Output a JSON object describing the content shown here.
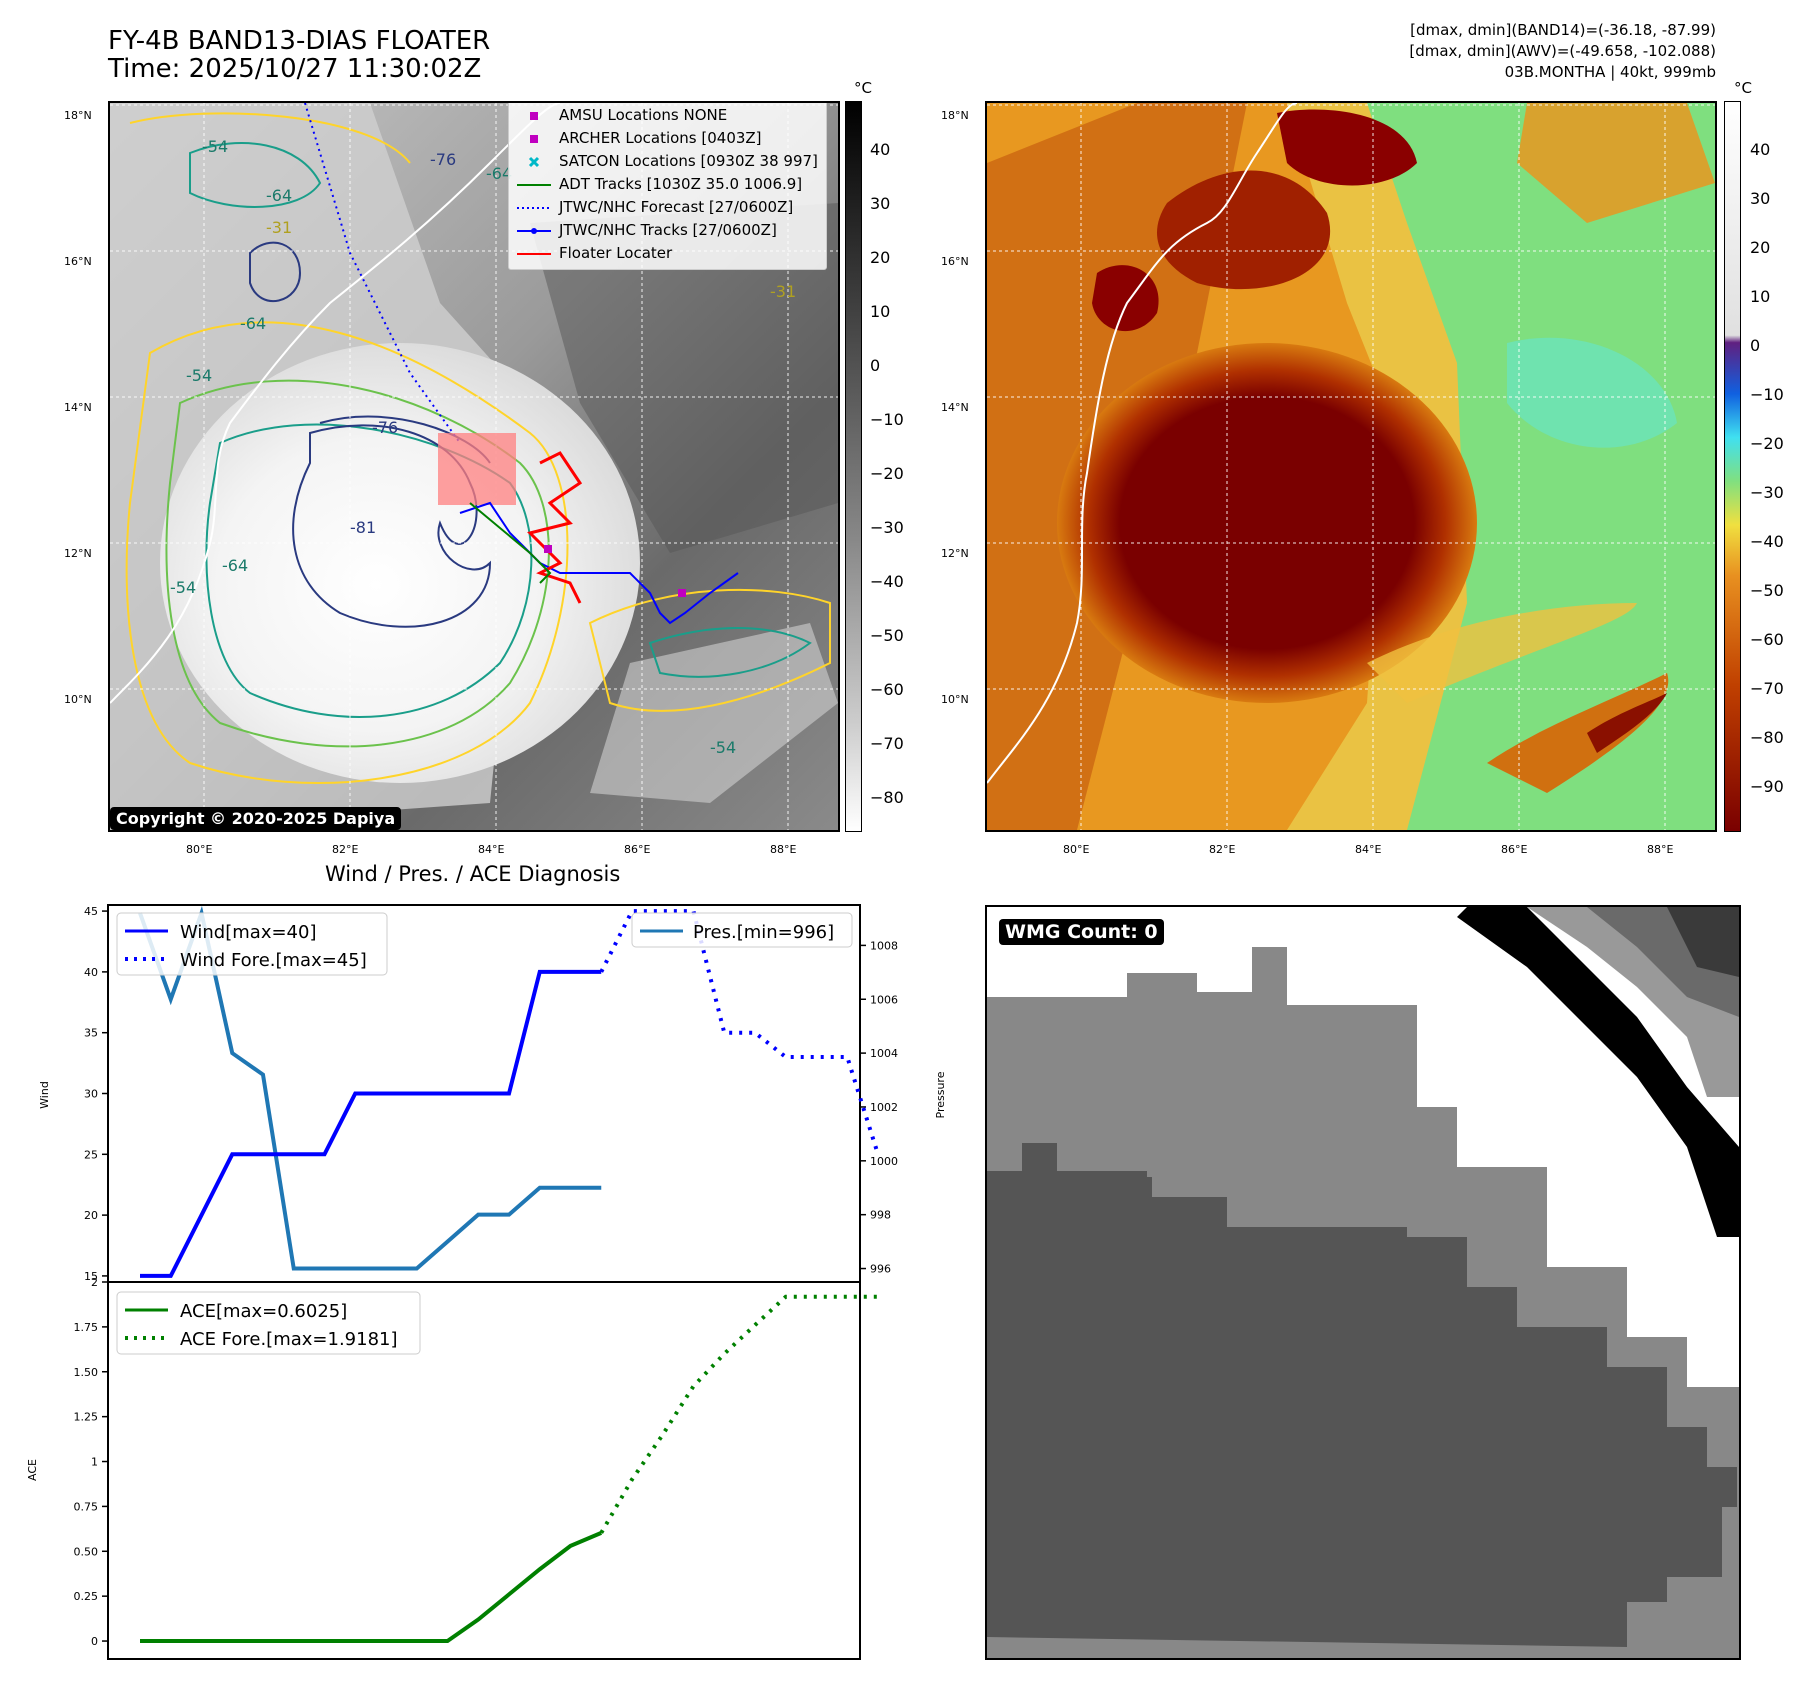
{
  "header": {
    "title_line1": "FY-4B BAND13-DIAS FLOATER",
    "title_line2": "Time: 2025/10/27 11:30:02Z",
    "info_line1": "[dmax, dmin](BAND14)=(-36.18, -87.99)",
    "info_line2": "[dmax, dmin](AWV)=(-49.658, -102.088)",
    "info_line3": "03B.MONTHA | 40kt, 999mb"
  },
  "map_axes": {
    "lat_ticks": [
      "18°N",
      "16°N",
      "14°N",
      "12°N",
      "10°N"
    ],
    "lon_ticks": [
      "80°E",
      "82°E",
      "84°E",
      "86°E",
      "88°E"
    ]
  },
  "ir_panel": {
    "copyright": "Copyright © 2020-2025 Dapiya",
    "contour_labels": [
      "-54",
      "-64",
      "-76",
      "-64",
      "-31",
      "-64",
      "-54",
      "-76",
      "-81",
      "-64",
      "-54",
      "-54",
      "-31"
    ],
    "colorbar_unit": "°C",
    "colorbar_ticks": [
      "40",
      "30",
      "20",
      "10",
      "0",
      "−10",
      "−20",
      "−30",
      "−40",
      "−50",
      "−60",
      "−70",
      "−80"
    ],
    "legend": [
      {
        "label": "AMSU Locations NONE",
        "color": "#c000c0",
        "icon": "square-marker-icon"
      },
      {
        "label": "ARCHER Locations [0403Z]",
        "color": "#c000c0",
        "icon": "square-marker-icon"
      },
      {
        "label": "SATCON Locations [0930Z 38 997]",
        "color": "#00b8c8",
        "icon": "x-marker-icon"
      },
      {
        "label": "ADT Tracks [1030Z 35.0 1006.9]",
        "color": "#008000",
        "icon": "line-icon"
      },
      {
        "label": "JTWC/NHC Forecast [27/0600Z]",
        "color": "#0000ff",
        "icon": "dotted-line-icon"
      },
      {
        "label": "JTWC/NHC Tracks [27/0600Z]",
        "color": "#0000ff",
        "icon": "dot-line-icon"
      },
      {
        "label": "Floater Locater",
        "color": "#ff0000",
        "icon": "line-icon"
      }
    ]
  },
  "wv_panel": {
    "colorbar_unit": "°C",
    "colorbar_ticks": [
      "40",
      "30",
      "20",
      "10",
      "0",
      "−10",
      "−20",
      "−30",
      "−40",
      "−50",
      "−60",
      "−70",
      "−80",
      "−90"
    ]
  },
  "diagnosis": {
    "title": "Wind / Pres. / ACE Diagnosis",
    "wind_ylabel": "Wind",
    "pres_ylabel": "Pressure",
    "ace_ylabel": "ACE",
    "wind_legend": [
      "Wind[max=40]",
      "Wind Fore.[max=45]"
    ],
    "pres_legend": [
      "Pres.[min=996]"
    ],
    "ace_legend": [
      "ACE[max=0.6025]",
      "ACE Fore.[max=1.9181]"
    ]
  },
  "wmg": {
    "label": "WMG Count: 0"
  },
  "chart_data": [
    {
      "type": "line",
      "title": "Wind / Pres. / ACE Diagnosis",
      "ylabel": "Wind",
      "ylim": [
        14.5,
        45.5
      ],
      "yticks": [
        15,
        20,
        25,
        30,
        35,
        40,
        45
      ],
      "x": [
        0,
        1,
        2,
        3,
        4,
        5,
        6,
        7,
        8,
        9,
        10,
        11,
        12,
        13,
        14,
        15,
        16,
        17,
        18,
        19,
        20,
        21,
        22,
        23,
        24
      ],
      "series": [
        {
          "name": "Wind[max=40]",
          "color": "#0000ff",
          "style": "solid",
          "x": [
            0,
            1,
            3,
            6,
            7,
            9,
            10,
            12,
            13,
            14,
            15
          ],
          "values": [
            15,
            15,
            25,
            25,
            30,
            30,
            30,
            30,
            40,
            40,
            40
          ]
        },
        {
          "name": "Wind Fore.[max=45]",
          "color": "#0000ff",
          "style": "dotted",
          "x": [
            15,
            16,
            17,
            18,
            19,
            20,
            21,
            22,
            23,
            24
          ],
          "values": [
            40,
            45,
            45,
            45,
            35,
            35,
            33,
            33,
            33,
            25
          ]
        }
      ]
    },
    {
      "type": "line",
      "ylabel": "Pressure",
      "ylim": [
        995.5,
        1009.5
      ],
      "yticks": [
        996,
        998,
        1000,
        1002,
        1004,
        1006,
        1008
      ],
      "series": [
        {
          "name": "Pres.[min=996]",
          "color": "#1f77b4",
          "style": "solid",
          "x": [
            0,
            1,
            2,
            3,
            4,
            5,
            6,
            7,
            8,
            9,
            10,
            11,
            12,
            13,
            14,
            15
          ],
          "values": [
            1009.2,
            1006.0,
            1009.2,
            1004.0,
            1003.2,
            996,
            996,
            996,
            996,
            996,
            997,
            998,
            998,
            999,
            999,
            999
          ]
        }
      ]
    },
    {
      "type": "line",
      "ylabel": "ACE",
      "ylim": [
        -0.1,
        2.0
      ],
      "yticks": [
        0.0,
        0.25,
        0.5,
        0.75,
        1.0,
        1.25,
        1.5,
        1.75,
        2.0
      ],
      "series": [
        {
          "name": "ACE[max=0.6025]",
          "color": "#008000",
          "style": "solid",
          "x": [
            0,
            10,
            11,
            12,
            13,
            14,
            15
          ],
          "values": [
            0,
            0,
            0.12,
            0.26,
            0.4,
            0.53,
            0.6025
          ]
        },
        {
          "name": "ACE Fore.[max=1.9181]",
          "color": "#008000",
          "style": "dotted",
          "x": [
            15,
            16,
            17,
            18,
            19,
            20,
            21,
            22,
            23,
            24
          ],
          "values": [
            0.6025,
            0.9,
            1.15,
            1.42,
            1.6,
            1.76,
            1.918,
            1.918,
            1.918,
            1.918
          ]
        }
      ]
    }
  ]
}
